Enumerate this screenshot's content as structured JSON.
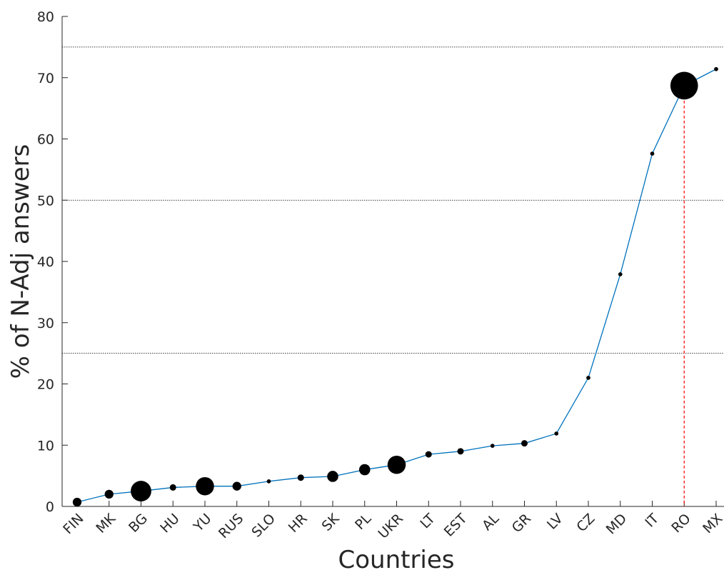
{
  "chart_data": {
    "type": "line",
    "xlabel": "Countries",
    "ylabel": "% of N-Adj answers",
    "ylim": [
      0,
      80
    ],
    "yticks": [
      0,
      10,
      20,
      30,
      40,
      50,
      60,
      70,
      80
    ],
    "categories": [
      "FIN",
      "MK",
      "BG",
      "HU",
      "YU",
      "RUS",
      "SLO",
      "HR",
      "SK",
      "PL",
      "UKR",
      "LT",
      "EST",
      "AL",
      "GR",
      "LV",
      "CZ",
      "MD",
      "IT",
      "RO",
      "MX"
    ],
    "values": [
      0.7,
      2.0,
      2.5,
      3.1,
      3.3,
      3.3,
      4.1,
      4.7,
      4.9,
      6.0,
      6.8,
      8.5,
      9.0,
      9.9,
      10.3,
      11.9,
      21.0,
      37.9,
      57.6,
      68.7,
      71.4
    ],
    "marker_weight": [
      3,
      3,
      8,
      2,
      7,
      3,
      1,
      2,
      4,
      4,
      7,
      2,
      2,
      1,
      2,
      1,
      1,
      1,
      1,
      11,
      1
    ],
    "reference_lines": [
      25,
      50,
      75
    ],
    "highlight_category": "RO",
    "line_color": "#0072bd",
    "marker_color": "#000000",
    "reference_line_color": "#000000",
    "highlight_color": "#ff0000"
  }
}
